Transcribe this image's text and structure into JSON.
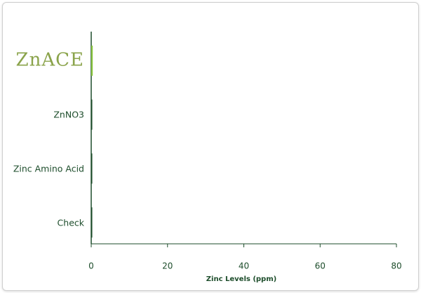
{
  "chart_data": {
    "type": "barh",
    "x_label": "Zinc Levels (ppm)",
    "categories": [
      "ZnACE",
      "ZnNO3",
      "Zinc Amino Acid",
      "Check"
    ],
    "values": [
      0.4,
      0.2,
      0.1,
      0.1
    ],
    "colors": [
      "#8cc63f",
      "#1d4d2b",
      "#1d4d2b",
      "#1d4d2b"
    ],
    "xlim": [
      0,
      80
    ],
    "xticks": [
      0,
      20,
      40,
      60,
      80
    ]
  }
}
